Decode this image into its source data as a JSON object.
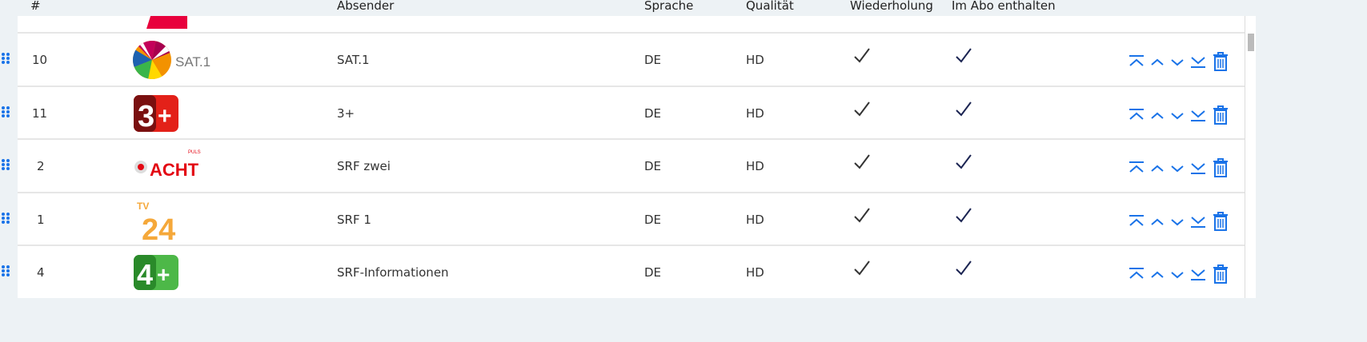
{
  "header": {
    "num": "#",
    "sender": "Absender",
    "language": "Sprache",
    "quality": "Qualität",
    "replay": "Wiederholung",
    "included": "Im Abo enthalten"
  },
  "rows": [
    {
      "num": "10",
      "logo": "SAT.1",
      "sender": "SAT.1",
      "language": "DE",
      "quality": "HD",
      "replay": true,
      "included": true
    },
    {
      "num": "11",
      "logo": "3+",
      "sender": "3+",
      "language": "DE",
      "quality": "HD",
      "replay": true,
      "included": true
    },
    {
      "num": "2",
      "logo": "ACHT",
      "sender": "SRF zwei",
      "language": "DE",
      "quality": "HD",
      "replay": true,
      "included": true
    },
    {
      "num": "1",
      "logo": "TV24",
      "sender": "SRF 1",
      "language": "DE",
      "quality": "HD",
      "replay": true,
      "included": true
    },
    {
      "num": "4",
      "logo": "4+",
      "sender": "SRF-Informationen",
      "language": "DE",
      "quality": "HD",
      "replay": true,
      "included": true
    }
  ],
  "colors": {
    "accent": "#1a73e8",
    "check_replay": "#333333",
    "check_included": "#1b2452",
    "background": "#edf2f5"
  }
}
